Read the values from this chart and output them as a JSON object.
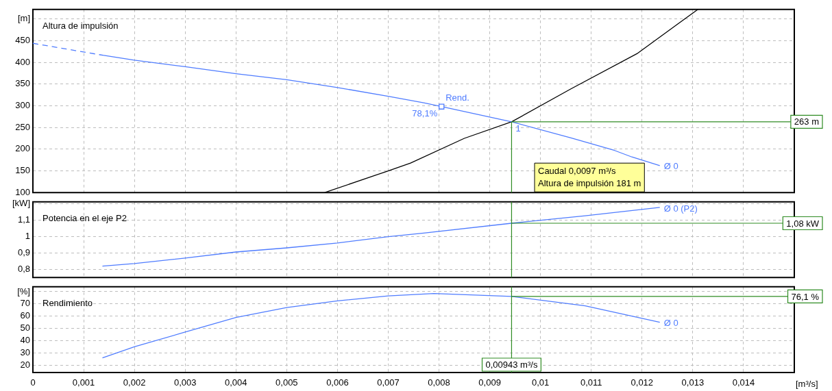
{
  "chart_data": [
    {
      "type": "line",
      "title": "Altura de impulsión",
      "xlim": [
        0,
        0.015
      ],
      "xticks": [
        {
          "value": 0.001,
          "label": null
        },
        {
          "value": 0.002,
          "label": null
        },
        {
          "value": 0.003,
          "label": null
        },
        {
          "value": 0.004,
          "label": null
        },
        {
          "value": 0.005,
          "label": null
        },
        {
          "value": 0.006,
          "label": null
        },
        {
          "value": 0.007,
          "label": null
        },
        {
          "value": 0.008,
          "label": null
        },
        {
          "value": 0.009,
          "label": null
        },
        {
          "value": 0.01,
          "label": null
        },
        {
          "value": 0.011,
          "label": null
        },
        {
          "value": 0.012,
          "label": null
        },
        {
          "value": 0.013,
          "label": null
        },
        {
          "value": 0.014,
          "label": null
        }
      ],
      "ylim": [
        100,
        522
      ],
      "yticks": [
        100,
        150,
        200,
        250,
        300,
        350,
        400,
        450,
        {
          "value": 500,
          "label": "[m]"
        }
      ],
      "tick_labels": "y",
      "grid": true,
      "legend": false,
      "marker": "none",
      "series": [
        {
          "type": "line",
          "line_style": "dashed",
          "color": "#4f7cff",
          "x": [
            0,
            0.001,
            0.0014
          ],
          "values": [
            444,
            424,
            416
          ]
        },
        {
          "type": "line",
          "line_style": "solid",
          "color": "#4f7cff",
          "x": [
            0.0014,
            0.002,
            0.003,
            0.004,
            0.005,
            0.006,
            0.007,
            0.0077,
            0.00805,
            0.00943,
            0.0106,
            0.01146,
            0.0118,
            0.01235
          ],
          "values": [
            416,
            405,
            390,
            374,
            360,
            342,
            322,
            307,
            298,
            263,
            226,
            197,
            182,
            162
          ]
        },
        {
          "type": "line",
          "line_style": "solid",
          "color": "#000000",
          "x": [
            0.00575,
            0.00695,
            0.00744,
            0.0085,
            0.00943,
            0.0106,
            0.0119,
            0.0127,
            0.0131
          ],
          "values": [
            100,
            148,
            168,
            225,
            263,
            339,
            420,
            488,
            522
          ]
        },
        {
          "type": "scatter",
          "marker": "square",
          "color": "#4f7cff",
          "x": [
            0.00805
          ],
          "values": [
            298
          ]
        }
      ],
      "ref_lines": [
        {
          "axis": "y",
          "value": 263,
          "label": "263 m",
          "color": "#2e8b22"
        },
        {
          "axis": "x",
          "value": 0.00943,
          "color": "#2e8b22"
        }
      ],
      "annotations": [
        {
          "text": "Rend.",
          "x": 0.00805,
          "y": 298
        },
        {
          "text": "78,1%",
          "x": 0.00805,
          "y": 298
        },
        {
          "text": "1",
          "x": 0.00943,
          "y": 263
        },
        {
          "text": "Ø 0",
          "x": 0.01235,
          "y": 162
        },
        "Caudal 0,0097 m³/s\nAltura de impulsión 181 m"
      ]
    },
    {
      "type": "line",
      "title": "Potencia en el eje P2",
      "xlim": [
        0,
        0.015
      ],
      "xticks": [
        {
          "value": 0.001,
          "label": null
        },
        {
          "value": 0.002,
          "label": null
        },
        {
          "value": 0.003,
          "label": null
        },
        {
          "value": 0.004,
          "label": null
        },
        {
          "value": 0.005,
          "label": null
        },
        {
          "value": 0.006,
          "label": null
        },
        {
          "value": 0.007,
          "label": null
        },
        {
          "value": 0.008,
          "label": null
        },
        {
          "value": 0.009,
          "label": null
        },
        {
          "value": 0.01,
          "label": null
        },
        {
          "value": 0.011,
          "label": null
        },
        {
          "value": 0.012,
          "label": null
        },
        {
          "value": 0.013,
          "label": null
        },
        {
          "value": 0.014,
          "label": null
        }
      ],
      "ylim": [
        0.75,
        1.21
      ],
      "yticks": [
        {
          "value": 0.8,
          "label": "0,8"
        },
        {
          "value": 0.9,
          "label": "0,9"
        },
        1,
        {
          "value": 1.1,
          "label": "1,1"
        },
        {
          "value": 1.2,
          "label": "[kW]"
        }
      ],
      "tick_labels": "y",
      "grid": true,
      "legend": false,
      "marker": "none",
      "series": [
        {
          "type": "line",
          "line_style": "solid",
          "color": "#4f7cff",
          "x": [
            0.00137,
            0.002,
            0.003,
            0.004,
            0.005,
            0.006,
            0.007,
            0.0077,
            0.00943,
            0.01088,
            0.01235
          ],
          "values": [
            0.819,
            0.835,
            0.868,
            0.905,
            0.93,
            0.96,
            0.998,
            1.02,
            1.08,
            1.125,
            1.176
          ]
        }
      ],
      "ref_lines": [
        {
          "axis": "y",
          "value": 1.08,
          "label": "1,08 kW",
          "color": "#2e8b22"
        },
        {
          "axis": "x",
          "value": 0.00943,
          "color": "#2e8b22"
        }
      ],
      "annotations": [
        {
          "text": "Ø 0 (P2)",
          "x": 0.01235,
          "y": 1.176
        }
      ]
    },
    {
      "type": "line",
      "title": "Rendimiento",
      "xlabel": "[m³/s]",
      "xlim": [
        0,
        0.015
      ],
      "xticks": [
        0,
        {
          "value": 0.001,
          "label": "0,001"
        },
        {
          "value": 0.002,
          "label": "0,002"
        },
        {
          "value": 0.003,
          "label": "0,003"
        },
        {
          "value": 0.004,
          "label": "0,004"
        },
        {
          "value": 0.005,
          "label": "0,005"
        },
        {
          "value": 0.006,
          "label": "0,006"
        },
        {
          "value": 0.007,
          "label": "0,007"
        },
        {
          "value": 0.008,
          "label": "0,008"
        },
        {
          "value": 0.009,
          "label": "0,009"
        },
        {
          "value": 0.01,
          "label": "0,01"
        },
        {
          "value": 0.011,
          "label": "0,011"
        },
        {
          "value": 0.012,
          "label": "0,012"
        },
        {
          "value": 0.013,
          "label": "0,013"
        },
        {
          "value": 0.014,
          "label": "0,014"
        }
      ],
      "ylim": [
        14,
        84
      ],
      "yticks": [
        20,
        30,
        40,
        50,
        60,
        70,
        {
          "value": 80,
          "label": "[%]"
        }
      ],
      "grid": true,
      "legend": false,
      "marker": "none",
      "series": [
        {
          "type": "line",
          "line_style": "solid",
          "color": "#4f7cff",
          "x": [
            0.00137,
            0.002,
            0.003,
            0.004,
            0.005,
            0.006,
            0.007,
            0.0079,
            0.00943,
            0.01088,
            0.01235
          ],
          "values": [
            26,
            35,
            47,
            59,
            67,
            72.5,
            76.5,
            78.5,
            76.1,
            68.5,
            55
          ]
        }
      ],
      "ref_lines": [
        {
          "axis": "y",
          "value": 76.1,
          "label": "76,1 %",
          "color": "#2e8b22"
        },
        {
          "axis": "x",
          "value": 0.00943,
          "label": "0,00943 m³/s",
          "color": "#2e8b22"
        }
      ],
      "annotations": [
        {
          "text": "Ø 0",
          "x": 0.01235,
          "y": 55
        }
      ]
    }
  ]
}
